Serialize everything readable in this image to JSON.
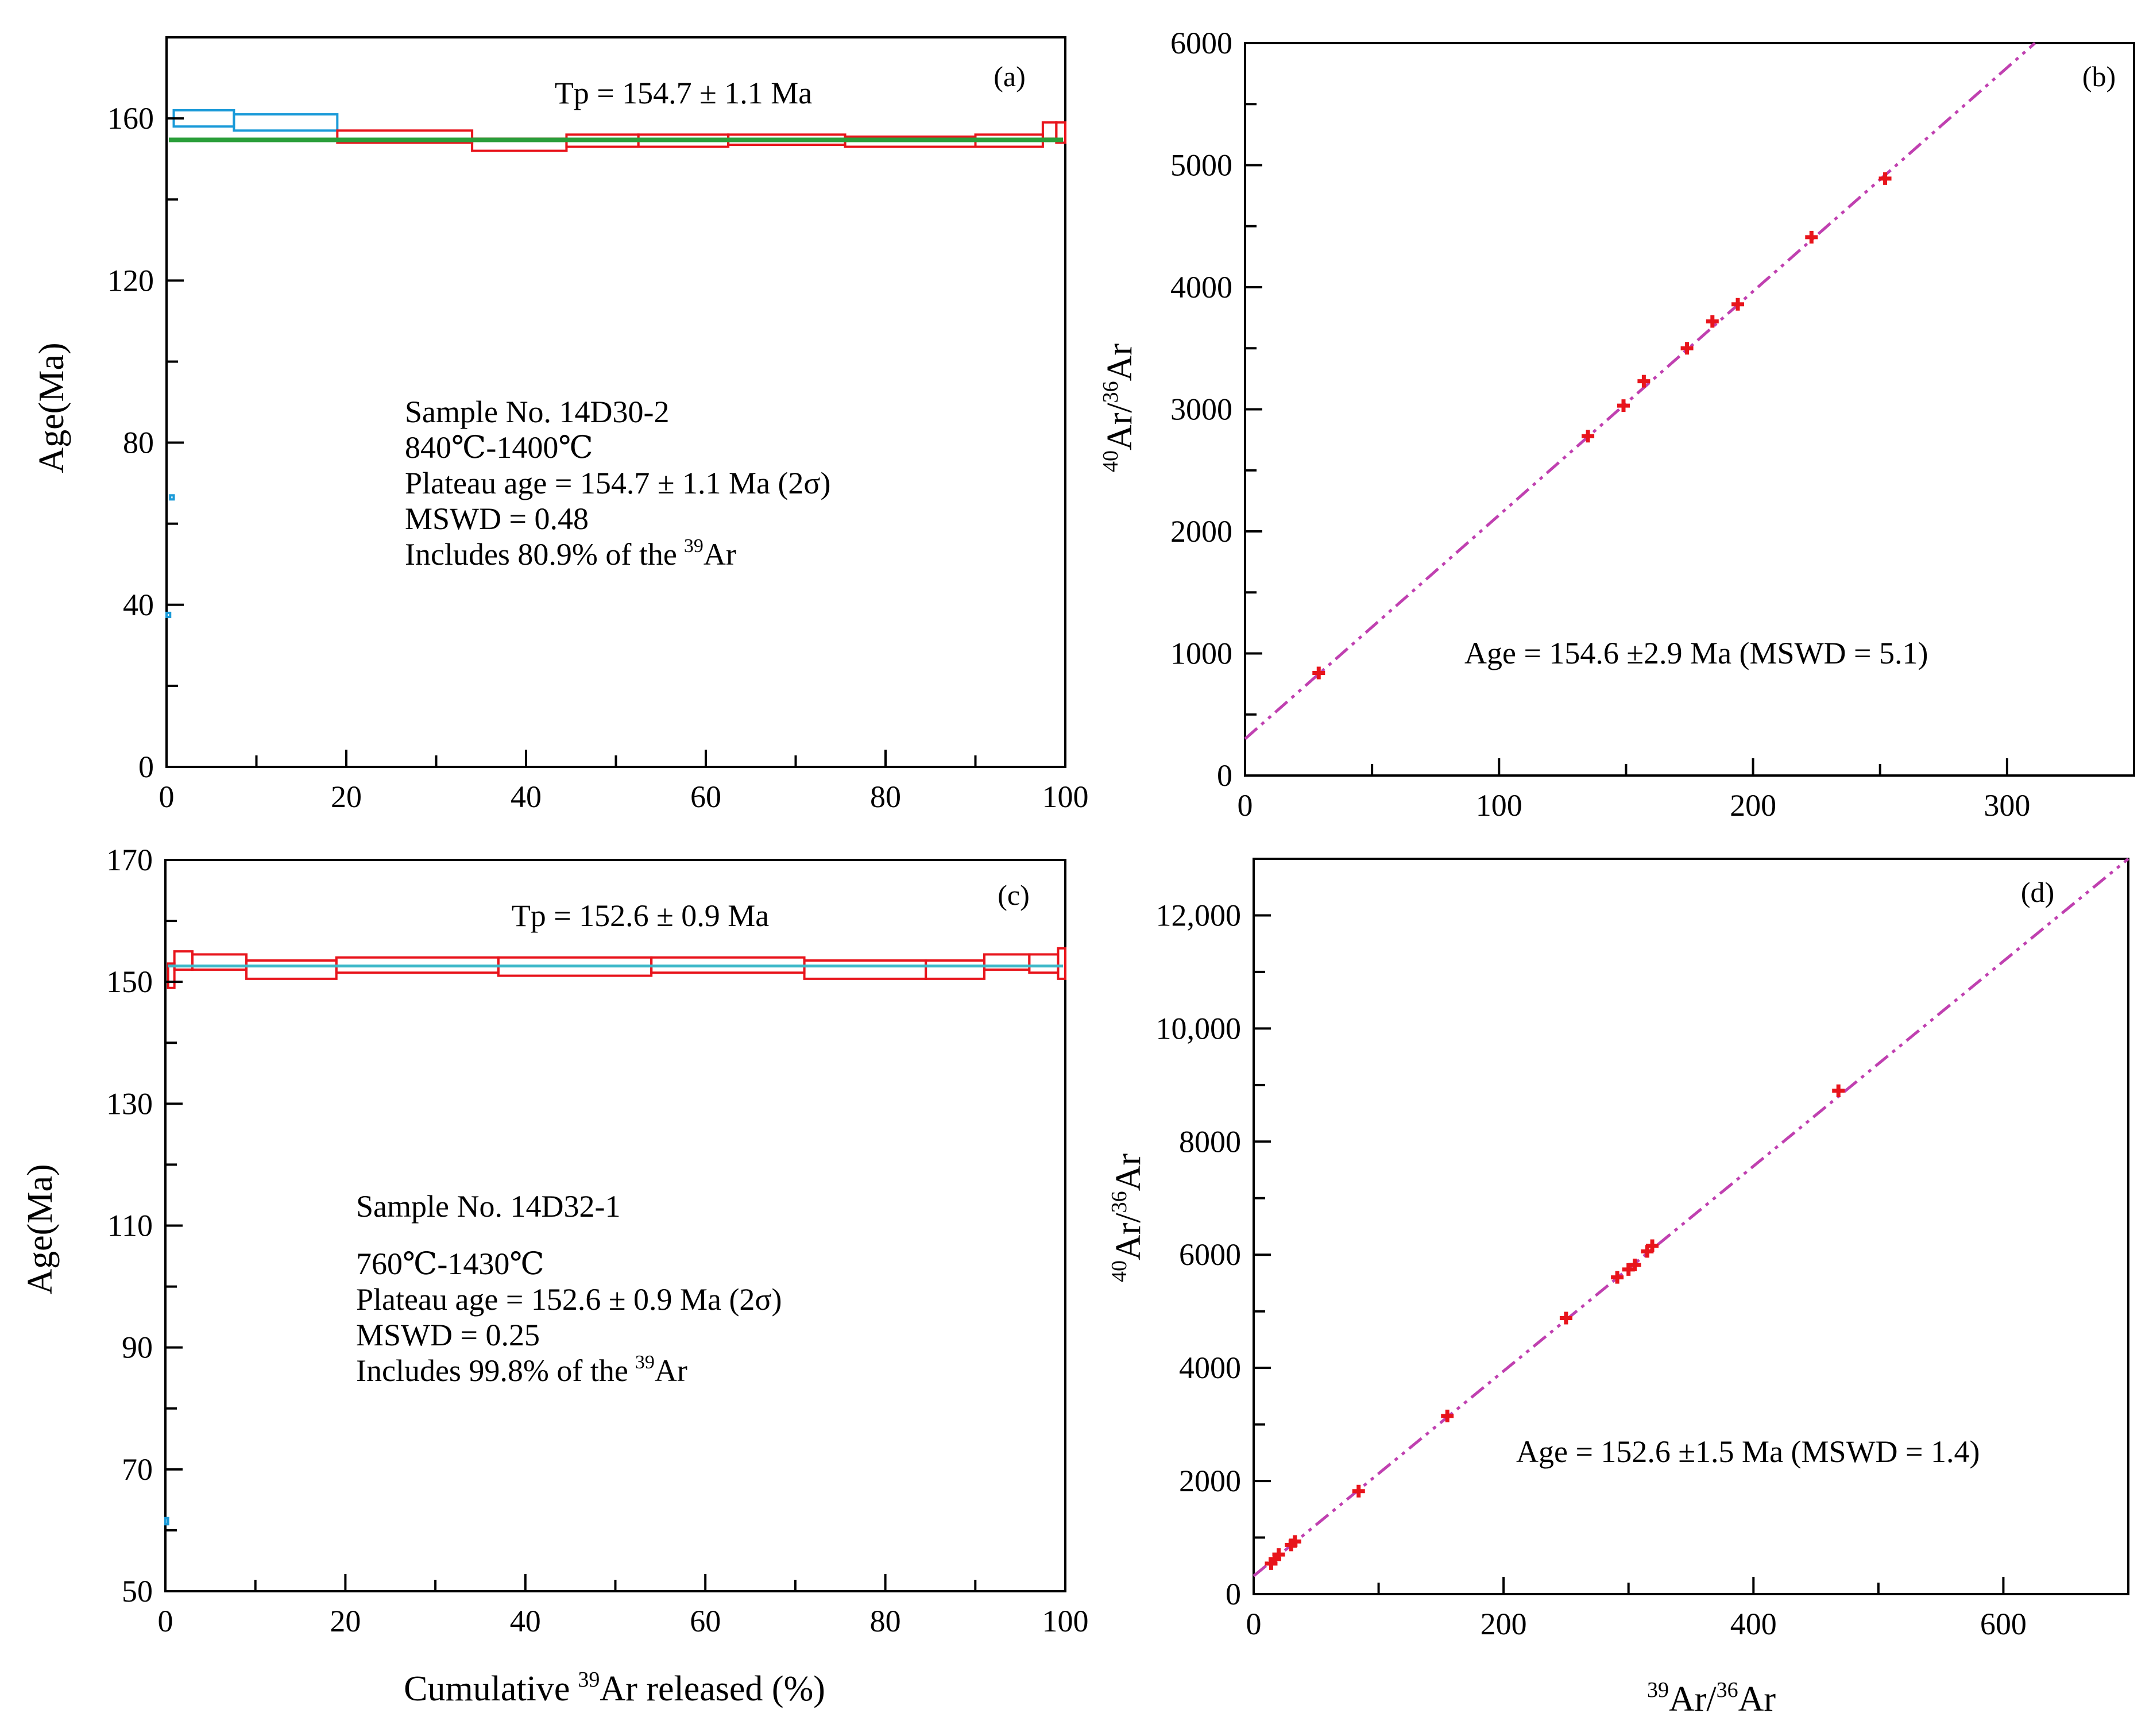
{
  "panels": [
    {
      "id": "a",
      "label": "(a)",
      "tp": "Tp = 154.7 ± 1.1 Ma",
      "ylabel": "Age(Ma)",
      "xlabel": "",
      "info": [
        "Sample No. 14D30-2",
        "840℃-1400℃",
        "Plateau age = 154.7 ± 1.1 Ma (2σ)",
        "MSWD = 0.48",
        "Includes 80.9% of the"
      ],
      "info_sup": "39",
      "info_tail": "Ar"
    },
    {
      "id": "b",
      "label": "(b)",
      "ylabel_sup": "40",
      "ylabel_main": "Ar/",
      "ylabel_sup2": "36",
      "ylabel_tail": "Ar",
      "note": "Age = 154.6 ±2.9 Ma (MSWD = 5.1)"
    },
    {
      "id": "c",
      "label": "(c)",
      "tp": "Tp = 152.6 ± 0.9 Ma",
      "ylabel": "Age(Ma)",
      "xlabel_main": "Cumulative",
      "xlabel_sup": "39",
      "xlabel_tail": "Ar released (%)",
      "info": [
        "Sample No. 14D32-1",
        "760℃-1430℃",
        "Plateau age = 152.6 ± 0.9 Ma (2σ)",
        "MSWD = 0.25",
        "Includes 99.8% of the"
      ],
      "info_sup": "39",
      "info_tail": "Ar"
    },
    {
      "id": "d",
      "label": "(d)",
      "ylabel_sup": "40",
      "ylabel_main": "Ar/",
      "ylabel_sup2": "36",
      "ylabel_tail": "Ar",
      "xlabel_sup": "39",
      "xlabel_main": "Ar/",
      "xlabel_sup2": "36",
      "xlabel_tail": "Ar",
      "note": "Age = 152.6 ±1.5 Ma (MSWD = 1.4)"
    }
  ],
  "colors": {
    "plateau_step": "#e8141b",
    "excluded_step": "#1a9ad8",
    "plateau_line_a": "#2a9e3a",
    "plateau_line_c": "#3cb8c8",
    "isochron_line": "#c040b0",
    "points": "#e8141b"
  },
  "chart_data": [
    {
      "type": "area",
      "panel": "a",
      "xlim": [
        0,
        100
      ],
      "ylim": [
        0,
        180
      ],
      "xticks": [
        "0",
        "20",
        "40",
        "60",
        "80",
        "100"
      ],
      "yticks": [
        "0",
        "40",
        "80",
        "120",
        "160"
      ],
      "ytick_values": [
        0,
        40,
        80,
        120,
        160
      ],
      "plateau_age": 154.7,
      "steps": [
        {
          "x0": 0.0,
          "x1": 0.4,
          "lo": 37,
          "hi": 38,
          "included": false
        },
        {
          "x0": 0.4,
          "x1": 0.8,
          "lo": 66,
          "hi": 67,
          "included": false
        },
        {
          "x0": 0.8,
          "x1": 7.5,
          "lo": 158,
          "hi": 162,
          "included": false
        },
        {
          "x0": 7.5,
          "x1": 19.0,
          "lo": 157,
          "hi": 161,
          "included": false
        },
        {
          "x0": 19.0,
          "x1": 34.0,
          "lo": 154,
          "hi": 157,
          "included": true
        },
        {
          "x0": 34.0,
          "x1": 44.5,
          "lo": 152,
          "hi": 155,
          "included": true
        },
        {
          "x0": 44.5,
          "x1": 52.5,
          "lo": 153,
          "hi": 156,
          "included": true
        },
        {
          "x0": 52.5,
          "x1": 62.5,
          "lo": 153,
          "hi": 156,
          "included": true
        },
        {
          "x0": 62.5,
          "x1": 75.5,
          "lo": 153.5,
          "hi": 156,
          "included": true
        },
        {
          "x0": 75.5,
          "x1": 90.0,
          "lo": 153,
          "hi": 155.5,
          "included": true
        },
        {
          "x0": 90.0,
          "x1": 97.5,
          "lo": 153,
          "hi": 156,
          "included": true
        },
        {
          "x0": 97.5,
          "x1": 99.0,
          "lo": 155,
          "hi": 159,
          "included": true
        },
        {
          "x0": 99.0,
          "x1": 100.0,
          "lo": 154,
          "hi": 159,
          "included": true
        }
      ]
    },
    {
      "type": "scatter",
      "panel": "b",
      "xlim": [
        0,
        350
      ],
      "ylim": [
        0,
        6000
      ],
      "xticks": [
        "0",
        "100",
        "200",
        "300"
      ],
      "xtick_values": [
        0,
        100,
        200,
        300
      ],
      "yticks": [
        "0",
        "1000",
        "2000",
        "3000",
        "4000",
        "5000",
        "6000"
      ],
      "ytick_values": [
        0,
        1000,
        2000,
        3000,
        4000,
        5000,
        6000
      ],
      "points": [
        [
          29,
          840
        ],
        [
          135,
          2780
        ],
        [
          149,
          3030
        ],
        [
          157,
          3230
        ],
        [
          174,
          3500
        ],
        [
          184,
          3720
        ],
        [
          194,
          3860
        ],
        [
          223,
          4410
        ],
        [
          252,
          4890
        ]
      ],
      "fit_line": {
        "x0": 0,
        "y0": 300,
        "x1": 311,
        "y1": 6000
      }
    },
    {
      "type": "area",
      "panel": "c",
      "xlim": [
        0,
        100
      ],
      "ylim": [
        50,
        170
      ],
      "xticks": [
        "0",
        "20",
        "40",
        "60",
        "80",
        "100"
      ],
      "yticks": [
        "50",
        "70",
        "90",
        "110",
        "130",
        "150",
        "170"
      ],
      "ytick_values": [
        50,
        70,
        90,
        110,
        130,
        150,
        170
      ],
      "plateau_age": 152.6,
      "steps": [
        {
          "x0": 0.0,
          "x1": 0.3,
          "lo": 61,
          "hi": 62,
          "included": false
        },
        {
          "x0": 0.3,
          "x1": 1.0,
          "lo": 149,
          "hi": 153,
          "included": true
        },
        {
          "x0": 1.0,
          "x1": 3.0,
          "lo": 152,
          "hi": 155,
          "included": true
        },
        {
          "x0": 3.0,
          "x1": 9.0,
          "lo": 152,
          "hi": 154.5,
          "included": true
        },
        {
          "x0": 9.0,
          "x1": 19.0,
          "lo": 150.5,
          "hi": 153.5,
          "included": true
        },
        {
          "x0": 19.0,
          "x1": 37.0,
          "lo": 151.5,
          "hi": 154,
          "included": true
        },
        {
          "x0": 37.0,
          "x1": 54.0,
          "lo": 151,
          "hi": 154,
          "included": true
        },
        {
          "x0": 54.0,
          "x1": 71.0,
          "lo": 151.5,
          "hi": 154,
          "included": true
        },
        {
          "x0": 71.0,
          "x1": 84.5,
          "lo": 150.5,
          "hi": 153.5,
          "included": true
        },
        {
          "x0": 84.5,
          "x1": 91.0,
          "lo": 150.5,
          "hi": 153.5,
          "included": true
        },
        {
          "x0": 91.0,
          "x1": 96.0,
          "lo": 152,
          "hi": 154.5,
          "included": true
        },
        {
          "x0": 96.0,
          "x1": 99.2,
          "lo": 151.5,
          "hi": 154.5,
          "included": true
        },
        {
          "x0": 99.2,
          "x1": 100.0,
          "lo": 150.5,
          "hi": 155.5,
          "included": true
        }
      ]
    },
    {
      "type": "scatter",
      "panel": "d",
      "xlim": [
        0,
        700
      ],
      "ylim": [
        0,
        13000
      ],
      "xticks": [
        "0",
        "200",
        "400",
        "600"
      ],
      "xtick_values": [
        0,
        200,
        400,
        600
      ],
      "yticks": [
        "0",
        "2000",
        "4000",
        "6000",
        "8000",
        "10,000",
        "12,000"
      ],
      "ytick_values": [
        0,
        2000,
        4000,
        6000,
        8000,
        10000,
        12000
      ],
      "points": [
        [
          14,
          540
        ],
        [
          17,
          620
        ],
        [
          20,
          700
        ],
        [
          30,
          870
        ],
        [
          33,
          930
        ],
        [
          84,
          1820
        ],
        [
          155,
          3150
        ],
        [
          250,
          4880
        ],
        [
          291,
          5600
        ],
        [
          300,
          5740
        ],
        [
          305,
          5820
        ],
        [
          315,
          6060
        ],
        [
          319,
          6160
        ],
        [
          468,
          8900
        ]
      ],
      "fit_line": {
        "x0": 0,
        "y0": 320,
        "x1": 700,
        "y1": 13000
      }
    }
  ]
}
